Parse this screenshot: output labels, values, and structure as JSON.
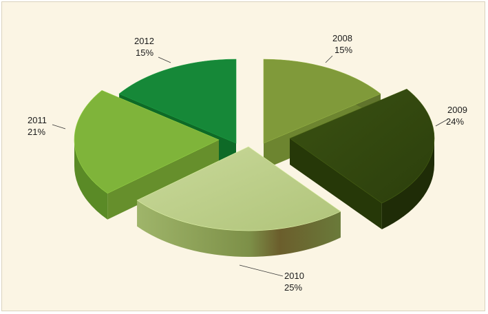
{
  "chart_data": {
    "type": "pie",
    "style": "3d-exploded",
    "title": "",
    "legend": "none",
    "slices": [
      {
        "label": "2008",
        "value": 15,
        "value_label": "15%",
        "color": "#809a3a"
      },
      {
        "label": "2009",
        "value": 24,
        "value_label": "24%",
        "color": "#3c5210"
      },
      {
        "label": "2010",
        "value": 25,
        "value_label": "25%",
        "color": "#c1d290"
      },
      {
        "label": "2011",
        "value": 21,
        "value_label": "21%",
        "color": "#7fb43a"
      },
      {
        "label": "2012",
        "value": 15,
        "value_label": "15%",
        "color": "#168838"
      }
    ]
  }
}
